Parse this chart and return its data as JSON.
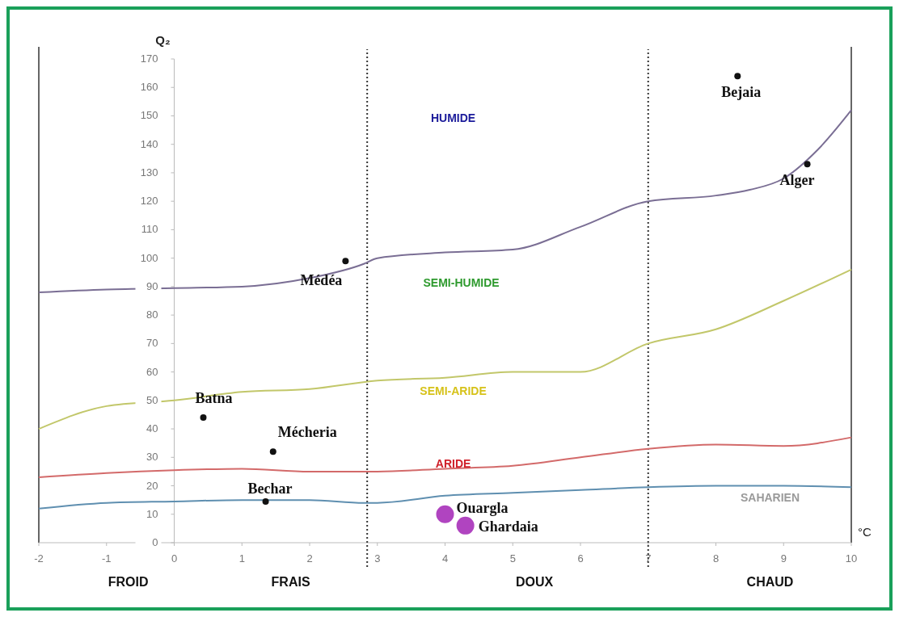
{
  "chart_data": {
    "type": "line",
    "ylabel": "Q₂",
    "xlabel": "°C",
    "xlim": [
      -2,
      10
    ],
    "ylim": [
      0,
      170
    ],
    "xticks": [
      -2,
      -1,
      0,
      1,
      2,
      3,
      4,
      5,
      6,
      7,
      8,
      9,
      10
    ],
    "yticks": [
      0,
      10,
      20,
      30,
      40,
      50,
      60,
      70,
      80,
      90,
      100,
      110,
      120,
      130,
      140,
      150,
      160,
      170
    ],
    "grid": false,
    "series": [
      {
        "color": "#7a6e94",
        "x": [
          -2,
          -1,
          0,
          1,
          2,
          2.8,
          3,
          4,
          5,
          6,
          7,
          8,
          8.5,
          9,
          9.5,
          10
        ],
        "values": [
          88,
          89,
          89.5,
          90,
          93,
          98,
          100,
          102,
          103,
          111,
          120,
          122,
          124,
          128,
          138,
          152
        ]
      },
      {
        "color": "#c2c76a",
        "x": [
          -2,
          -1,
          0,
          1,
          2,
          3,
          4,
          5,
          6,
          7,
          8,
          9,
          10
        ],
        "values": [
          40,
          48,
          50,
          53,
          54,
          57,
          58,
          60,
          60,
          70,
          75,
          85,
          96
        ]
      },
      {
        "color": "#d36a6a",
        "x": [
          -2,
          -1,
          0,
          1,
          2,
          3,
          4,
          5,
          6,
          7,
          8,
          9,
          10
        ],
        "values": [
          23,
          24.5,
          25.5,
          26,
          25,
          25,
          26,
          27,
          30,
          33,
          34.5,
          34,
          37
        ]
      },
      {
        "color": "#5f8fb0",
        "x": [
          -2,
          -1,
          0,
          1,
          2,
          2.8,
          3,
          4,
          5,
          6,
          7,
          8,
          9,
          10
        ],
        "values": [
          12,
          14,
          14.5,
          15,
          15,
          14,
          14,
          16.5,
          17.5,
          18.5,
          19.5,
          20,
          20,
          19.5
        ]
      },
      {
        "type": "scatter",
        "name": "Médéa",
        "color": "#111111",
        "x": [
          2.53
        ],
        "values": [
          99
        ]
      },
      {
        "type": "scatter",
        "name": "Bejaia",
        "color": "#111111",
        "x": [
          8.32
        ],
        "values": [
          164
        ]
      },
      {
        "type": "scatter",
        "name": "Alger",
        "color": "#111111",
        "x": [
          9.35
        ],
        "values": [
          133
        ]
      },
      {
        "type": "scatter",
        "name": "Batna",
        "color": "#111111",
        "x": [
          0.43
        ],
        "values": [
          44
        ]
      },
      {
        "type": "scatter",
        "name": "Mécheria",
        "color": "#111111",
        "x": [
          1.46
        ],
        "values": [
          32
        ]
      },
      {
        "type": "scatter",
        "name": "Bechar",
        "color": "#111111",
        "x": [
          1.35
        ],
        "values": [
          14.5
        ]
      },
      {
        "type": "bubble",
        "name": "Ouargla",
        "color": "#b044c0",
        "x": [
          4.0
        ],
        "values": [
          10
        ],
        "sizes": [
          1
        ]
      },
      {
        "type": "bubble",
        "name": "Ghardaia",
        "color": "#b044c0",
        "x": [
          4.3
        ],
        "values": [
          6
        ],
        "sizes": [
          1
        ]
      }
    ],
    "ref_lines": [
      {
        "axis": "x",
        "value": 2.85,
        "line_style": "dotted",
        "color": "#333333"
      },
      {
        "axis": "x",
        "value": 7,
        "line_style": "dotted",
        "color": "#333333"
      }
    ],
    "annotations": [
      "HUMIDE",
      "SEMI-HUMIDE",
      "SEMI-ARIDE",
      "ARIDE",
      "SAHARIEN",
      "FROID",
      "FRAIS",
      "DOUX",
      "CHAUD"
    ]
  }
}
